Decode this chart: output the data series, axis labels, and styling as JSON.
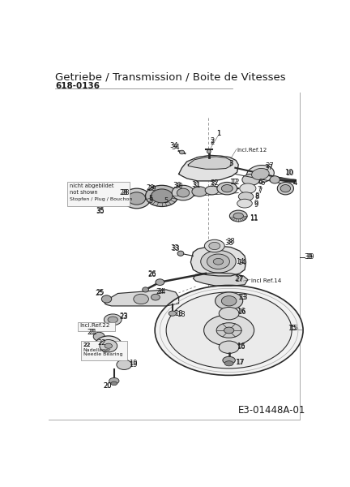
{
  "title": "Getriebe / Transmission / Boite de Vitesses",
  "subtitle": "618-0136",
  "diagram_code": "E3-01448A-01",
  "bg_color": "#ffffff",
  "line_color": "#2a2a2a",
  "text_color": "#1a1a1a",
  "title_fontsize": 9.5,
  "subtitle_fontsize": 7.5,
  "code_fontsize": 8.5,
  "label_fontsize": 6.0,
  "anno_fontsize": 5.2
}
